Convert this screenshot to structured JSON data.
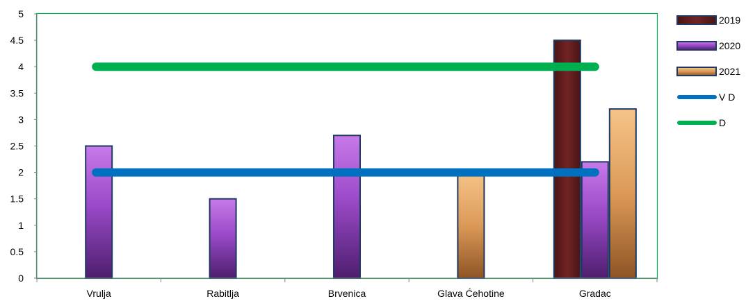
{
  "chart_data": {
    "type": "bar",
    "categories": [
      "Vrulja",
      "Rabitlja",
      "Brvenica",
      "Glava Ćehotine",
      "Gradac"
    ],
    "series": [
      {
        "name": "2019",
        "values": [
          null,
          null,
          null,
          null,
          4.5
        ],
        "color": "#6b1f1f"
      },
      {
        "name": "2020",
        "values": [
          2.5,
          1.5,
          2.7,
          null,
          2.2
        ],
        "color": "#9b45c8"
      },
      {
        "name": "2021",
        "values": [
          null,
          null,
          null,
          2.0,
          3.2
        ],
        "color": "#e0a060"
      }
    ],
    "reference_lines": [
      {
        "name": "V D",
        "value": 2,
        "color": "#0070c0"
      },
      {
        "name": "D",
        "value": 4,
        "color": "#00b050"
      }
    ],
    "ylim": [
      0,
      5
    ],
    "yticks": [
      "0",
      "0.5",
      "1",
      "1.5",
      "2",
      "2.5",
      "3",
      "3.5",
      "4",
      "4.5",
      "5"
    ],
    "xlabel": "",
    "ylabel": "",
    "legend_position": "right",
    "plot_border_color": "#00b050"
  }
}
